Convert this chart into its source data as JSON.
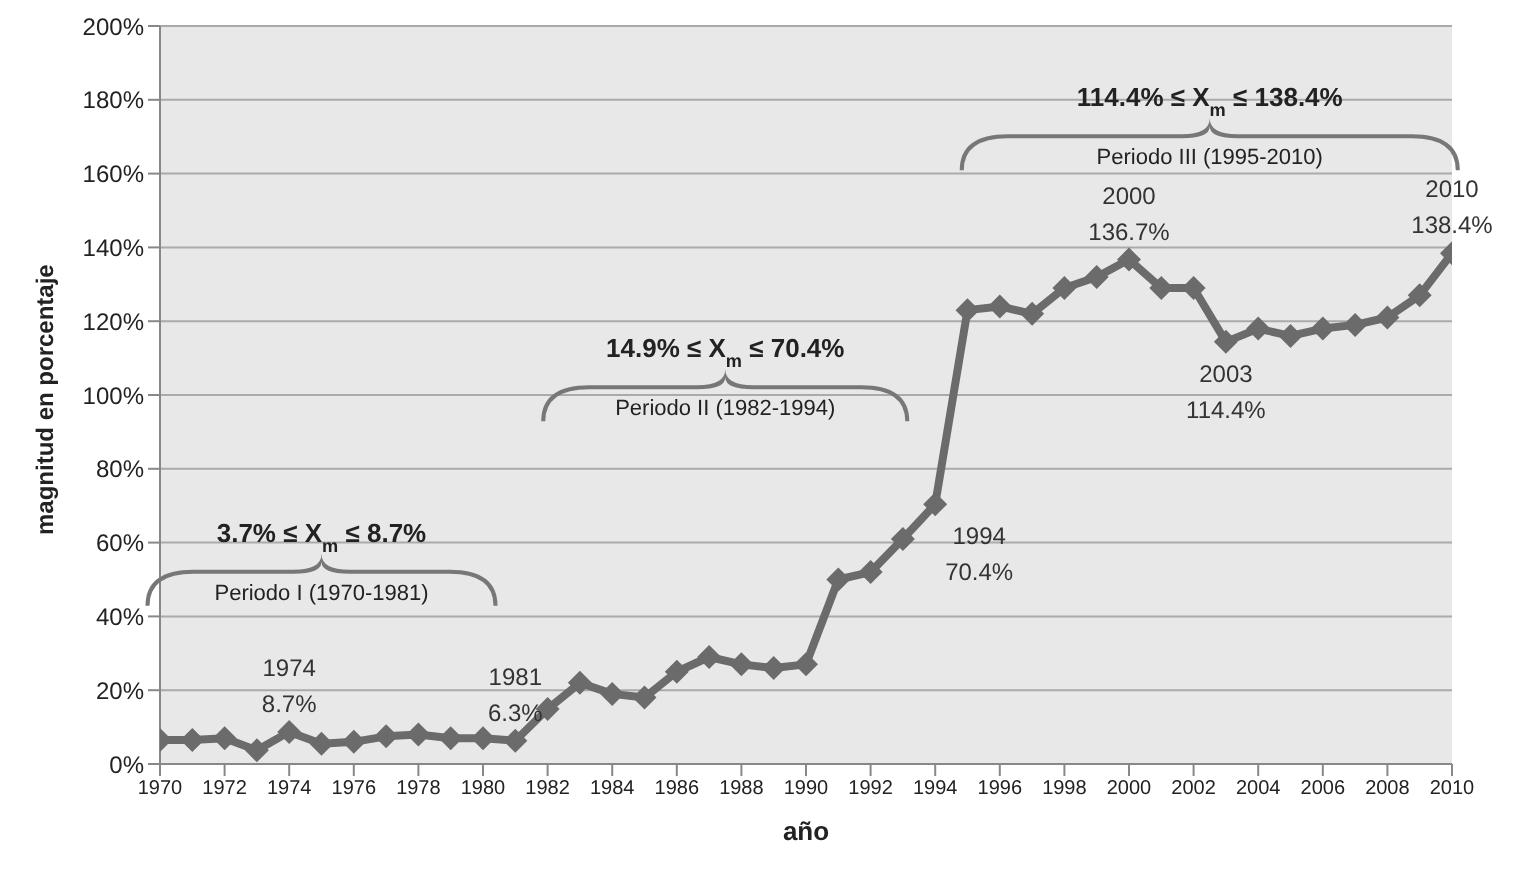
{
  "chart_data": {
    "type": "line",
    "xlabel": "año",
    "ylabel": "magnitud en porcentaje",
    "x": [
      1970,
      1971,
      1972,
      1973,
      1974,
      1975,
      1976,
      1977,
      1978,
      1979,
      1980,
      1981,
      1982,
      1983,
      1984,
      1985,
      1986,
      1987,
      1988,
      1989,
      1990,
      1991,
      1992,
      1993,
      1994,
      1995,
      1996,
      1997,
      1998,
      1999,
      2000,
      2001,
      2002,
      2003,
      2004,
      2005,
      2006,
      2007,
      2008,
      2009,
      2010
    ],
    "series": [
      {
        "color": "#6b6b6b",
        "values": [
          6.5,
          6.5,
          7,
          3.7,
          8.7,
          5.5,
          6,
          7.5,
          8,
          7,
          7,
          6.3,
          14.9,
          22,
          19,
          18,
          25,
          29,
          27,
          26,
          27,
          50,
          52,
          61,
          70.4,
          123,
          124,
          122,
          129,
          132,
          136.7,
          129,
          129,
          114.4,
          118,
          116,
          118,
          119,
          121,
          127,
          138.4
        ],
        "value_labels": [
          null,
          null,
          null,
          null,
          "8.7%",
          null,
          null,
          null,
          null,
          null,
          null,
          "6.3%",
          null,
          null,
          null,
          null,
          null,
          null,
          null,
          null,
          null,
          null,
          null,
          null,
          "70.4%",
          null,
          null,
          null,
          null,
          null,
          "136.7%",
          null,
          null,
          "114.4%",
          null,
          null,
          null,
          null,
          null,
          null,
          "138.4%"
        ]
      }
    ],
    "annotations": [
      {
        "text": "1974",
        "x": 1974,
        "y": 8.7
      },
      {
        "text": "1981",
        "x": 1981,
        "y": 6.3
      },
      {
        "text": "1994",
        "x": 1994,
        "y": 70.4
      },
      {
        "text": "2000",
        "x": 2000,
        "y": 136.7
      },
      {
        "text": "2003",
        "x": 2003,
        "y": 114.4
      },
      {
        "text": "2010",
        "x": 2010,
        "y": 138.4
      },
      "3.7% ≤ X$_{m}$ ≤ 8.7%",
      "Periodo I (1970-1981)",
      "14.9% ≤ X$_{m}$ ≤ 70.4%",
      "Periodo II (1982-1994)",
      "114.4% ≤ X$_{m}$ ≤ 138.4%",
      "Periodo III (1995-2010)"
    ],
    "xlim": [
      1970,
      2010
    ],
    "xticks": [
      1970,
      1972,
      1974,
      1976,
      1978,
      1980,
      1982,
      1984,
      1986,
      1988,
      1990,
      1992,
      1994,
      1996,
      1998,
      2000,
      2002,
      2004,
      2006,
      2008,
      2010
    ],
    "ylim": [
      0,
      200
    ],
    "yticks": [
      {
        "value": 0,
        "label": "0%"
      },
      {
        "value": 20,
        "label": "20%"
      },
      {
        "value": 40,
        "label": "40%"
      },
      {
        "value": 60,
        "label": "60%"
      },
      {
        "value": 80,
        "label": "80%"
      },
      {
        "value": 100,
        "label": "100%"
      },
      {
        "value": 120,
        "label": "120%"
      },
      {
        "value": 140,
        "label": "140%"
      },
      {
        "value": 160,
        "label": "160%"
      },
      {
        "value": 180,
        "label": "180%"
      },
      {
        "value": 200,
        "label": "200%"
      }
    ],
    "grid": "y",
    "marker": "diamond",
    "line_style": "solid",
    "legend": false
  }
}
